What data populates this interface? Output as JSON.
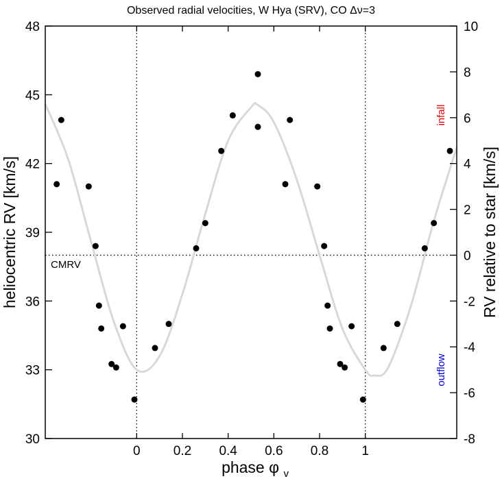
{
  "chart_data": {
    "type": "scatter",
    "title": "Observed radial velocities, W Hya (SRV), CO Δν=3",
    "xlabel": "phase",
    "xlabel_symbol": "φ",
    "xlabel_subscript": "v",
    "ylabel_left": "heliocentric RV  [km/s]",
    "ylabel_right": "RV relative to star  [km/s]",
    "xlim": [
      -0.4,
      1.4
    ],
    "ylim_left": [
      30,
      48
    ],
    "ylim_right": [
      -8,
      10
    ],
    "x_ticks": [
      {
        "value": 0,
        "label": "0"
      },
      {
        "value": 0.2,
        "label": "0.2"
      },
      {
        "value": 0.4,
        "label": "0.4"
      },
      {
        "value": 0.6,
        "label": "0.6"
      },
      {
        "value": 0.8,
        "label": "0.8"
      },
      {
        "value": 1,
        "label": "1"
      }
    ],
    "y_left_ticks": [
      {
        "value": 30,
        "label": "30"
      },
      {
        "value": 33,
        "label": "33"
      },
      {
        "value": 36,
        "label": "36"
      },
      {
        "value": 39,
        "label": "39"
      },
      {
        "value": 42,
        "label": "42"
      },
      {
        "value": 45,
        "label": "45"
      },
      {
        "value": 48,
        "label": "48"
      }
    ],
    "y_right_ticks": [
      {
        "value": -8,
        "label": "-8"
      },
      {
        "value": -6,
        "label": "-6"
      },
      {
        "value": -4,
        "label": "-4"
      },
      {
        "value": -2,
        "label": "-2"
      },
      {
        "value": 0,
        "label": "0"
      },
      {
        "value": 2,
        "label": "2"
      },
      {
        "value": 4,
        "label": "4"
      },
      {
        "value": 6,
        "label": "6"
      },
      {
        "value": 8,
        "label": "8"
      },
      {
        "value": 10,
        "label": "10"
      }
    ],
    "cmrv": 38.0,
    "cmrv_label": "CMRV",
    "vertical_guides": [
      0,
      1
    ],
    "annotations": {
      "infall": {
        "text": "infall",
        "color": "#dd0000"
      },
      "outflow": {
        "text": "outflow",
        "color": "#0000cc"
      }
    },
    "points": [
      {
        "x": -0.35,
        "y": 41.1
      },
      {
        "x": -0.33,
        "y": 43.9
      },
      {
        "x": -0.21,
        "y": 41.0
      },
      {
        "x": -0.18,
        "y": 38.4
      },
      {
        "x": -0.165,
        "y": 35.8
      },
      {
        "x": -0.155,
        "y": 34.8
      },
      {
        "x": -0.11,
        "y": 33.25
      },
      {
        "x": -0.09,
        "y": 33.1
      },
      {
        "x": -0.06,
        "y": 34.9
      },
      {
        "x": -0.01,
        "y": 31.7
      },
      {
        "x": 0.08,
        "y": 33.95
      },
      {
        "x": 0.14,
        "y": 35.0
      },
      {
        "x": 0.26,
        "y": 38.3
      },
      {
        "x": 0.3,
        "y": 39.4
      },
      {
        "x": 0.37,
        "y": 42.55
      },
      {
        "x": 0.42,
        "y": 44.1
      },
      {
        "x": 0.53,
        "y": 43.6
      },
      {
        "x": 0.53,
        "y": 45.9
      },
      {
        "x": 0.65,
        "y": 41.1
      },
      {
        "x": 0.67,
        "y": 43.9
      },
      {
        "x": 0.79,
        "y": 41.0
      },
      {
        "x": 0.82,
        "y": 38.4
      },
      {
        "x": 0.835,
        "y": 35.8
      },
      {
        "x": 0.845,
        "y": 34.8
      },
      {
        "x": 0.89,
        "y": 33.25
      },
      {
        "x": 0.91,
        "y": 33.1
      },
      {
        "x": 0.94,
        "y": 34.9
      },
      {
        "x": 0.99,
        "y": 31.7
      },
      {
        "x": 1.08,
        "y": 33.95
      },
      {
        "x": 1.14,
        "y": 35.0
      },
      {
        "x": 1.26,
        "y": 38.3
      },
      {
        "x": 1.3,
        "y": 39.4
      },
      {
        "x": 1.37,
        "y": 42.55
      }
    ],
    "fit_curve": {
      "color": "#d8d8d8",
      "x": [
        -0.4,
        -0.3,
        -0.2,
        -0.1,
        0.0,
        0.1,
        0.2,
        0.3,
        0.4,
        0.5,
        0.53,
        0.6,
        0.7,
        0.8,
        0.9,
        1.0,
        1.04,
        1.1,
        1.2,
        1.3,
        1.4
      ],
      "y": [
        44.6,
        42.2,
        38.6,
        35.1,
        33.0,
        33.6,
        36.3,
        39.8,
        43.0,
        44.45,
        44.55,
        43.8,
        41.3,
        38.0,
        34.8,
        33.0,
        32.75,
        33.1,
        35.8,
        39.5,
        42.7
      ]
    }
  }
}
